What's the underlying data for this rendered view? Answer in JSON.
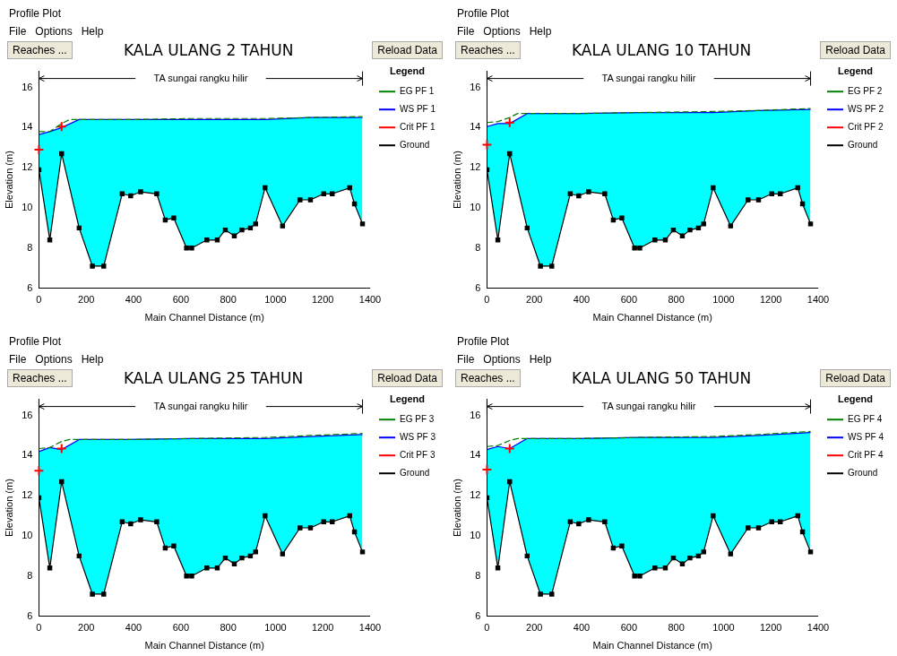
{
  "chart_data": [
    {
      "type": "line",
      "title": "KALA ULANG 2 TAHUN",
      "xlabel": "Main Channel Distance (m)",
      "ylabel": "Elevation (m)",
      "legend_title": "Legend",
      "legend": "top right",
      "color": "#00ffff",
      "xlim": [
        0,
        1400
      ],
      "xticks": [
        0,
        200,
        400,
        600,
        800,
        1000,
        1200,
        1400
      ],
      "ylim": [
        6,
        16.8
      ],
      "yticks": [
        6,
        8,
        10,
        12,
        14,
        16
      ],
      "annotations": [
        "Profile Plot",
        "File",
        "Options",
        "Help",
        "Reaches ...",
        "Reload Data",
        "TA sungai rangku hilir"
      ],
      "series": [
        {
          "name": "EG PF 1",
          "type": "line",
          "line_style": "dashed",
          "marker": "none",
          "color": "#008000",
          "x": [
            0,
            46,
            96,
            130,
            170,
            388,
            646,
            956,
            1148,
            1368
          ],
          "values": [
            13.8,
            13.8,
            14.2,
            14.4,
            14.4,
            14.4,
            14.45,
            14.45,
            14.5,
            14.55
          ]
        },
        {
          "name": "WS PF 1",
          "type": "area",
          "line_style": "solid",
          "marker": "none",
          "color": "#0000ff",
          "x": [
            0,
            46,
            96,
            170,
            388,
            646,
            956,
            1148,
            1368
          ],
          "values": [
            13.65,
            13.8,
            14.0,
            14.4,
            14.4,
            14.4,
            14.4,
            14.5,
            14.5
          ]
        },
        {
          "name": "Crit PF 1",
          "type": "scatter",
          "marker": "cross",
          "color": "#ff0000",
          "x": [
            0,
            96
          ],
          "values": [
            12.9,
            14.05
          ]
        },
        {
          "name": "Ground",
          "type": "line",
          "line_style": "solid",
          "marker": "square",
          "color": "#000000",
          "x": [
            0,
            46,
            96,
            170,
            226,
            274,
            352,
            388,
            430,
            498,
            534,
            570,
            624,
            646,
            710,
            754,
            788,
            826,
            858,
            894,
            916,
            956,
            1030,
            1104,
            1148,
            1204,
            1240,
            1314,
            1334,
            1368
          ],
          "values": [
            11.9,
            8.4,
            12.7,
            9.0,
            7.1,
            7.1,
            10.7,
            10.6,
            10.8,
            10.7,
            9.4,
            9.5,
            8.0,
            8.0,
            8.4,
            8.4,
            8.9,
            8.6,
            8.9,
            9.0,
            9.2,
            11.0,
            9.1,
            10.4,
            10.4,
            10.7,
            10.7,
            11.0,
            10.2,
            9.2
          ]
        }
      ]
    },
    {
      "type": "line",
      "title": "KALA ULANG 10 TAHUN",
      "xlabel": "Main Channel Distance (m)",
      "ylabel": "Elevation (m)",
      "legend_title": "Legend",
      "legend": "top right",
      "color": "#00ffff",
      "xlim": [
        0,
        1400
      ],
      "xticks": [
        0,
        200,
        400,
        600,
        800,
        1000,
        1200,
        1400
      ],
      "ylim": [
        6,
        16.8
      ],
      "yticks": [
        6,
        8,
        10,
        12,
        14,
        16
      ],
      "annotations": [
        "Profile Plot",
        "File",
        "Options",
        "Help",
        "Reaches ...",
        "Reload Data",
        "TA sungai rangku hilir"
      ],
      "series": [
        {
          "name": "EG PF 2",
          "type": "line",
          "line_style": "dashed",
          "marker": "none",
          "color": "#008000",
          "x": [
            0,
            46,
            96,
            130,
            170,
            388,
            646,
            956,
            1148,
            1368
          ],
          "values": [
            14.25,
            14.3,
            14.5,
            14.7,
            14.7,
            14.7,
            14.75,
            14.8,
            14.85,
            14.95
          ]
        },
        {
          "name": "WS PF 2",
          "type": "area",
          "line_style": "solid",
          "marker": "none",
          "color": "#0000ff",
          "x": [
            0,
            46,
            96,
            170,
            388,
            646,
            956,
            1148,
            1368
          ],
          "values": [
            14.05,
            14.2,
            14.2,
            14.7,
            14.7,
            14.75,
            14.75,
            14.85,
            14.9
          ]
        },
        {
          "name": "Crit PF 2",
          "type": "scatter",
          "marker": "cross",
          "color": "#ff0000",
          "x": [
            0,
            96
          ],
          "values": [
            13.15,
            14.25
          ]
        },
        {
          "name": "Ground",
          "type": "line",
          "line_style": "solid",
          "marker": "square",
          "color": "#000000",
          "x": [
            0,
            46,
            96,
            170,
            226,
            274,
            352,
            388,
            430,
            498,
            534,
            570,
            624,
            646,
            710,
            754,
            788,
            826,
            858,
            894,
            916,
            956,
            1030,
            1104,
            1148,
            1204,
            1240,
            1314,
            1334,
            1368
          ],
          "values": [
            11.9,
            8.4,
            12.7,
            9.0,
            7.1,
            7.1,
            10.7,
            10.6,
            10.8,
            10.7,
            9.4,
            9.5,
            8.0,
            8.0,
            8.4,
            8.4,
            8.9,
            8.6,
            8.9,
            9.0,
            9.2,
            11.0,
            9.1,
            10.4,
            10.4,
            10.7,
            10.7,
            11.0,
            10.2,
            9.2
          ]
        }
      ]
    },
    {
      "type": "line",
      "title": "KALA ULANG 25 TAHUN",
      "xlabel": "Main Channel Distance (m)",
      "ylabel": "Elevation (m)",
      "legend_title": "Legend",
      "legend": "top right",
      "color": "#00ffff",
      "xlim": [
        0,
        1400
      ],
      "xticks": [
        0,
        200,
        400,
        600,
        800,
        1000,
        1200,
        1400
      ],
      "ylim": [
        6,
        16.8
      ],
      "yticks": [
        6,
        8,
        10,
        12,
        14,
        16
      ],
      "annotations": [
        "Profile Plot",
        "File",
        "Options",
        "Help",
        "Reaches ...",
        "Reload Data",
        "TA sungai rangku hilir"
      ],
      "series": [
        {
          "name": "EG PF 3",
          "type": "line",
          "line_style": "dashed",
          "marker": "none",
          "color": "#008000",
          "x": [
            0,
            46,
            96,
            130,
            170,
            388,
            646,
            956,
            1148,
            1368
          ],
          "values": [
            14.35,
            14.4,
            14.7,
            14.8,
            14.8,
            14.8,
            14.85,
            14.9,
            15.0,
            15.1
          ]
        },
        {
          "name": "WS PF 3",
          "type": "area",
          "line_style": "solid",
          "marker": "none",
          "color": "#0000ff",
          "x": [
            0,
            46,
            96,
            170,
            388,
            646,
            956,
            1148,
            1368
          ],
          "values": [
            14.2,
            14.4,
            14.3,
            14.8,
            14.8,
            14.85,
            14.85,
            14.95,
            15.05
          ]
        },
        {
          "name": "Crit PF 3",
          "type": "scatter",
          "marker": "cross",
          "color": "#ff0000",
          "x": [
            0,
            96
          ],
          "values": [
            13.25,
            14.35
          ]
        },
        {
          "name": "Ground",
          "type": "line",
          "line_style": "solid",
          "marker": "square",
          "color": "#000000",
          "x": [
            0,
            46,
            96,
            170,
            226,
            274,
            352,
            388,
            430,
            498,
            534,
            570,
            624,
            646,
            710,
            754,
            788,
            826,
            858,
            894,
            916,
            956,
            1030,
            1104,
            1148,
            1204,
            1240,
            1314,
            1334,
            1368
          ],
          "values": [
            11.9,
            8.4,
            12.7,
            9.0,
            7.1,
            7.1,
            10.7,
            10.6,
            10.8,
            10.7,
            9.4,
            9.5,
            8.0,
            8.0,
            8.4,
            8.4,
            8.9,
            8.6,
            8.9,
            9.0,
            9.2,
            11.0,
            9.1,
            10.4,
            10.4,
            10.7,
            10.7,
            11.0,
            10.2,
            9.2
          ]
        }
      ]
    },
    {
      "type": "line",
      "title": "KALA ULANG 50 TAHUN",
      "xlabel": "Main Channel Distance (m)",
      "ylabel": "Elevation (m)",
      "legend_title": "Legend",
      "legend": "top right",
      "color": "#00ffff",
      "xlim": [
        0,
        1400
      ],
      "xticks": [
        0,
        200,
        400,
        600,
        800,
        1000,
        1200,
        1400
      ],
      "ylim": [
        6,
        16.8
      ],
      "yticks": [
        6,
        8,
        10,
        12,
        14,
        16
      ],
      "annotations": [
        "Profile Plot",
        "File",
        "Options",
        "Help",
        "Reaches ...",
        "Reload Data",
        "TA sungai rangku hilir"
      ],
      "series": [
        {
          "name": "EG PF 4",
          "type": "line",
          "line_style": "dashed",
          "marker": "none",
          "color": "#008000",
          "x": [
            0,
            46,
            96,
            130,
            170,
            388,
            646,
            956,
            1148,
            1368
          ],
          "values": [
            14.45,
            14.5,
            14.75,
            14.85,
            14.85,
            14.85,
            14.9,
            14.95,
            15.05,
            15.2
          ]
        },
        {
          "name": "WS PF 4",
          "type": "area",
          "line_style": "solid",
          "marker": "none",
          "color": "#0000ff",
          "x": [
            0,
            46,
            96,
            170,
            388,
            646,
            956,
            1148,
            1368
          ],
          "values": [
            14.3,
            14.45,
            14.35,
            14.85,
            14.85,
            14.9,
            14.9,
            15.0,
            15.15
          ]
        },
        {
          "name": "Crit PF 4",
          "type": "scatter",
          "marker": "cross",
          "color": "#ff0000",
          "x": [
            0,
            96
          ],
          "values": [
            13.3,
            14.35
          ]
        },
        {
          "name": "Ground",
          "type": "line",
          "line_style": "solid",
          "marker": "square",
          "color": "#000000",
          "x": [
            0,
            46,
            96,
            170,
            226,
            274,
            352,
            388,
            430,
            498,
            534,
            570,
            624,
            646,
            710,
            754,
            788,
            826,
            858,
            894,
            916,
            956,
            1030,
            1104,
            1148,
            1204,
            1240,
            1314,
            1334,
            1368
          ],
          "values": [
            11.9,
            8.4,
            12.7,
            9.0,
            7.1,
            7.1,
            10.7,
            10.6,
            10.8,
            10.7,
            9.4,
            9.5,
            8.0,
            8.0,
            8.4,
            8.4,
            8.9,
            8.6,
            8.9,
            9.0,
            9.2,
            11.0,
            9.1,
            10.4,
            10.4,
            10.7,
            10.7,
            11.0,
            10.2,
            9.2
          ]
        }
      ]
    }
  ]
}
